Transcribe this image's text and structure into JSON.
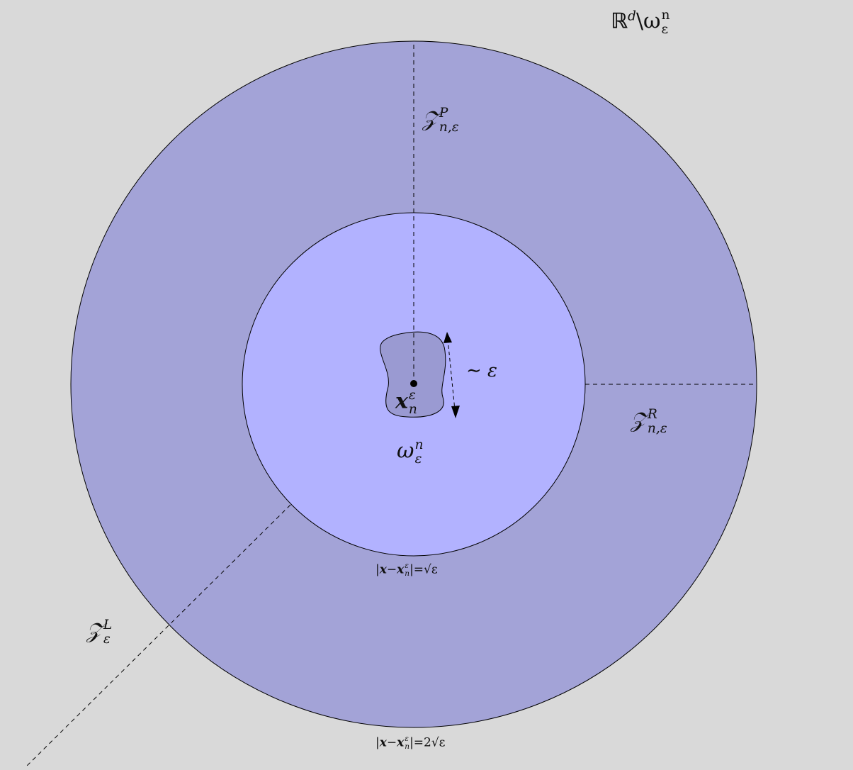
{
  "colors": {
    "background": "#d9d9d9",
    "outer_annulus": "#a3a3d7",
    "inner_disk": "#b2b2ff",
    "inclusion": "#9a9ad2",
    "stroke": "#000000"
  },
  "labels": {
    "complement": {
      "base": "ℝ",
      "sup": "d",
      "sep": "\\ω",
      "sub": "ε",
      "sup2": "n"
    },
    "zone_p": {
      "base": "𝒵",
      "sup": "P",
      "sub": "n,ε"
    },
    "zone_r": {
      "base": "𝒵",
      "sup": "R",
      "sub": "n,ε"
    },
    "zone_l": {
      "base": "𝒵",
      "sup": "L",
      "sub": "ε"
    },
    "center": {
      "base": "x",
      "sup": "ε",
      "sub": "n"
    },
    "inner_domain": {
      "base": "ω",
      "sup": "n",
      "sub": "ε"
    },
    "scale": "∼ ε",
    "inner_radius": {
      "pre": "|",
      "x": "x",
      "minus": "−",
      "x2": "x",
      "sup": "ε",
      "sub": "n",
      "post": "|=√ε"
    },
    "outer_radius": {
      "pre": "|",
      "x": "x",
      "minus": "−",
      "x2": "x",
      "sup": "ε",
      "sub": "n",
      "post": "|=2√ε"
    }
  }
}
